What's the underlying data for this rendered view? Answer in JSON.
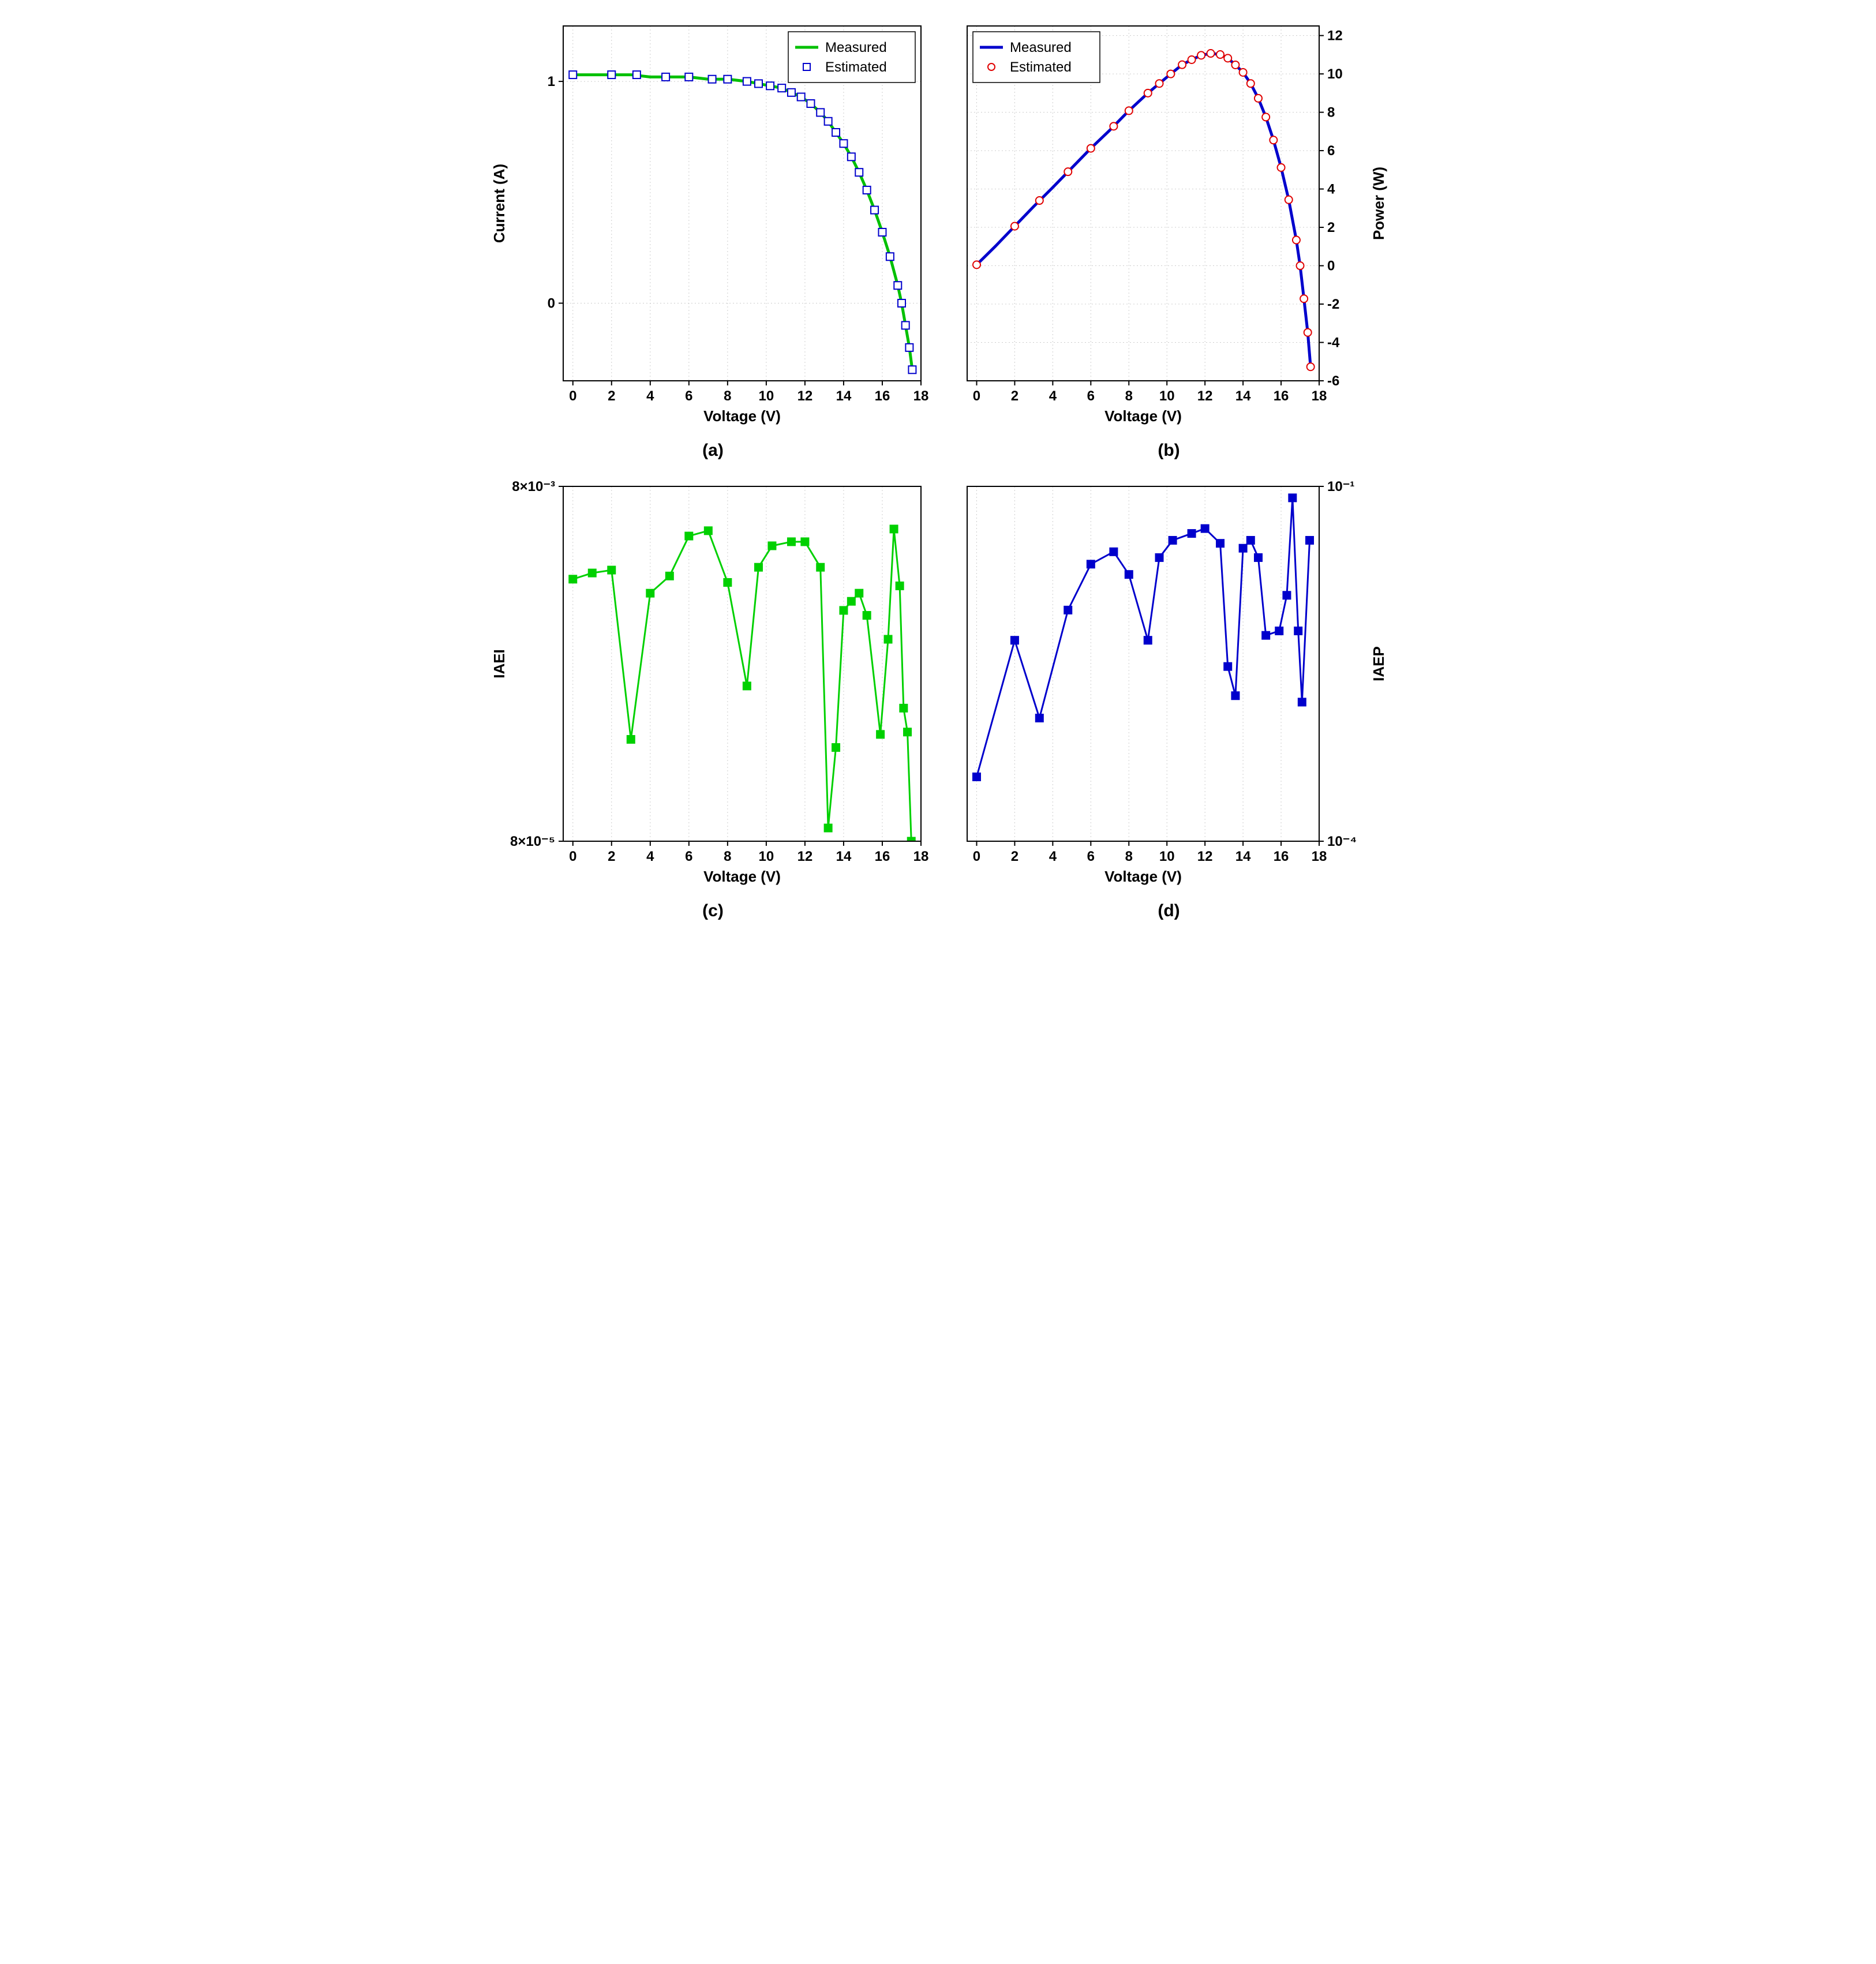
{
  "panels": {
    "a": {
      "type": "line+scatter",
      "xlabel": "Voltage (V)",
      "ylabel": "Current (A)",
      "ylabel_side": "left",
      "sub_label": "(a)",
      "xlim": [
        -0.5,
        18
      ],
      "ylim": [
        -0.35,
        1.25
      ],
      "xticks": [
        0,
        2,
        4,
        6,
        8,
        10,
        12,
        14,
        16,
        18
      ],
      "yticks": [
        0,
        1
      ],
      "grid_color": "#cccccc",
      "grid_dash": "2,4",
      "background_color": "#ffffff",
      "label_fontsize": 26,
      "tick_fontsize": 24,
      "legend": {
        "position": "top-right",
        "items": [
          {
            "label": "Measured",
            "type": "line",
            "color": "#00c000",
            "width": 5
          },
          {
            "label": "Estimated",
            "type": "square-open",
            "color": "#0000cc",
            "size": 12
          }
        ],
        "fontsize": 24,
        "border_color": "#000000",
        "bg_color": "#ffffff"
      },
      "series": [
        {
          "name": "measured",
          "type": "line",
          "color": "#00c000",
          "width": 5,
          "data": [
            [
              0.0,
              1.03
            ],
            [
              1.0,
              1.03
            ],
            [
              2.0,
              1.03
            ],
            [
              3.0,
              1.03
            ],
            [
              4.0,
              1.02
            ],
            [
              5.0,
              1.02
            ],
            [
              6.0,
              1.02
            ],
            [
              7.0,
              1.01
            ],
            [
              8.0,
              1.01
            ],
            [
              9.0,
              1.0
            ],
            [
              9.6,
              0.99
            ],
            [
              10.2,
              0.98
            ],
            [
              10.8,
              0.97
            ],
            [
              11.3,
              0.95
            ],
            [
              11.8,
              0.93
            ],
            [
              12.3,
              0.9
            ],
            [
              12.8,
              0.86
            ],
            [
              13.2,
              0.82
            ],
            [
              13.6,
              0.77
            ],
            [
              14.0,
              0.72
            ],
            [
              14.4,
              0.66
            ],
            [
              14.8,
              0.59
            ],
            [
              15.2,
              0.51
            ],
            [
              15.6,
              0.42
            ],
            [
              16.0,
              0.32
            ],
            [
              16.4,
              0.21
            ],
            [
              16.8,
              0.08
            ],
            [
              17.0,
              0.0
            ],
            [
              17.2,
              -0.1
            ],
            [
              17.4,
              -0.2
            ],
            [
              17.55,
              -0.3
            ]
          ]
        },
        {
          "name": "estimated",
          "type": "scatter",
          "marker": "square-open",
          "color": "#0000cc",
          "size": 13,
          "stroke_width": 2,
          "data": [
            [
              0.0,
              1.03
            ],
            [
              2.0,
              1.03
            ],
            [
              3.3,
              1.03
            ],
            [
              4.8,
              1.02
            ],
            [
              6.0,
              1.02
            ],
            [
              7.2,
              1.01
            ],
            [
              8.0,
              1.01
            ],
            [
              9.0,
              1.0
            ],
            [
              9.6,
              0.99
            ],
            [
              10.2,
              0.98
            ],
            [
              10.8,
              0.97
            ],
            [
              11.3,
              0.95
            ],
            [
              11.8,
              0.93
            ],
            [
              12.3,
              0.9
            ],
            [
              12.8,
              0.86
            ],
            [
              13.2,
              0.82
            ],
            [
              13.6,
              0.77
            ],
            [
              14.0,
              0.72
            ],
            [
              14.4,
              0.66
            ],
            [
              14.8,
              0.59
            ],
            [
              15.2,
              0.51
            ],
            [
              15.6,
              0.42
            ],
            [
              16.0,
              0.32
            ],
            [
              16.4,
              0.21
            ],
            [
              16.8,
              0.08
            ],
            [
              17.0,
              0.0
            ],
            [
              17.2,
              -0.1
            ],
            [
              17.4,
              -0.2
            ],
            [
              17.55,
              -0.3
            ]
          ]
        }
      ]
    },
    "b": {
      "type": "line+scatter",
      "xlabel": "Voltage (V)",
      "ylabel": "Power (W)",
      "ylabel_side": "right",
      "sub_label": "(b)",
      "xlim": [
        -0.5,
        18
      ],
      "ylim": [
        -6,
        12.5
      ],
      "xticks": [
        0,
        2,
        4,
        6,
        8,
        10,
        12,
        14,
        16,
        18
      ],
      "yticks": [
        -6,
        -4,
        -2,
        0,
        2,
        4,
        6,
        8,
        10,
        12
      ],
      "grid_color": "#cccccc",
      "grid_dash": "2,4",
      "background_color": "#ffffff",
      "label_fontsize": 26,
      "tick_fontsize": 24,
      "legend": {
        "position": "top-left",
        "items": [
          {
            "label": "Measured",
            "type": "line",
            "color": "#0000cc",
            "width": 5
          },
          {
            "label": "Estimated",
            "type": "circle-open",
            "color": "#e00000",
            "size": 12
          }
        ],
        "fontsize": 24,
        "border_color": "#000000",
        "bg_color": "#ffffff"
      },
      "series": [
        {
          "name": "measured",
          "type": "line",
          "color": "#0000cc",
          "width": 5,
          "data": [
            [
              0.0,
              0.05
            ],
            [
              1.0,
              1.03
            ],
            [
              2.0,
              2.06
            ],
            [
              3.0,
              3.09
            ],
            [
              4.0,
              4.08
            ],
            [
              5.0,
              5.1
            ],
            [
              6.0,
              6.12
            ],
            [
              7.0,
              7.07
            ],
            [
              8.0,
              8.08
            ],
            [
              9.0,
              9.0
            ],
            [
              9.6,
              9.5
            ],
            [
              10.2,
              10.0
            ],
            [
              10.8,
              10.48
            ],
            [
              11.3,
              10.74
            ],
            [
              11.8,
              10.97
            ],
            [
              12.3,
              11.07
            ],
            [
              12.8,
              11.01
            ],
            [
              13.2,
              10.82
            ],
            [
              13.6,
              10.47
            ],
            [
              14.0,
              10.08
            ],
            [
              14.4,
              9.5
            ],
            [
              14.8,
              8.73
            ],
            [
              15.2,
              7.75
            ],
            [
              15.6,
              6.55
            ],
            [
              16.0,
              5.12
            ],
            [
              16.4,
              3.44
            ],
            [
              16.8,
              1.34
            ],
            [
              17.0,
              0.0
            ],
            [
              17.2,
              -1.72
            ],
            [
              17.4,
              -3.48
            ],
            [
              17.55,
              -5.27
            ]
          ]
        },
        {
          "name": "estimated",
          "type": "scatter",
          "marker": "circle-open",
          "color": "#e00000",
          "size": 13,
          "stroke_width": 2,
          "data": [
            [
              0.0,
              0.05
            ],
            [
              2.0,
              2.06
            ],
            [
              3.3,
              3.4
            ],
            [
              4.8,
              4.9
            ],
            [
              6.0,
              6.12
            ],
            [
              7.2,
              7.27
            ],
            [
              8.0,
              8.08
            ],
            [
              9.0,
              9.0
            ],
            [
              9.6,
              9.5
            ],
            [
              10.2,
              10.0
            ],
            [
              10.8,
              10.48
            ],
            [
              11.3,
              10.74
            ],
            [
              11.8,
              10.97
            ],
            [
              12.3,
              11.07
            ],
            [
              12.8,
              11.01
            ],
            [
              13.2,
              10.82
            ],
            [
              13.6,
              10.47
            ],
            [
              14.0,
              10.08
            ],
            [
              14.4,
              9.5
            ],
            [
              14.8,
              8.73
            ],
            [
              15.2,
              7.75
            ],
            [
              15.6,
              6.55
            ],
            [
              16.0,
              5.12
            ],
            [
              16.4,
              3.44
            ],
            [
              16.8,
              1.34
            ],
            [
              17.0,
              0.0
            ],
            [
              17.2,
              -1.72
            ],
            [
              17.4,
              -3.48
            ],
            [
              17.55,
              -5.27
            ]
          ]
        }
      ]
    },
    "c": {
      "type": "line-marker-log",
      "xlabel": "Voltage (V)",
      "ylabel": "IAEI",
      "ylabel_side": "left",
      "sub_label": "(c)",
      "xlim": [
        -0.5,
        18
      ],
      "ylim_log": [
        8e-05,
        0.008
      ],
      "xticks": [
        0,
        2,
        4,
        6,
        8,
        10,
        12,
        14,
        16,
        18
      ],
      "ytick_labels": [
        "8×10⁻⁵",
        "8×10⁻³"
      ],
      "ytick_logvals": [
        8e-05,
        0.008
      ],
      "grid_color": "#cccccc",
      "grid_dash": "2,4",
      "background_color": "#ffffff",
      "label_fontsize": 26,
      "tick_fontsize": 24,
      "series": [
        {
          "name": "iaei",
          "type": "line-marker",
          "color": "#00d000",
          "width": 3,
          "marker": "square-filled",
          "size": 14,
          "data": [
            [
              0.0,
              0.0024
            ],
            [
              1.0,
              0.0026
            ],
            [
              2.0,
              0.0027
            ],
            [
              3.0,
              0.0003
            ],
            [
              4.0,
              0.002
            ],
            [
              5.0,
              0.0025
            ],
            [
              6.0,
              0.0042
            ],
            [
              7.0,
              0.0045
            ],
            [
              8.0,
              0.0023
            ],
            [
              9.0,
              0.0006
            ],
            [
              9.6,
              0.0028
            ],
            [
              10.3,
              0.0037
            ],
            [
              11.3,
              0.0039
            ],
            [
              12.0,
              0.0039
            ],
            [
              12.8,
              0.0028
            ],
            [
              13.2,
              9.5e-05
            ],
            [
              13.6,
              0.00027
            ],
            [
              14.0,
              0.0016
            ],
            [
              14.4,
              0.0018
            ],
            [
              14.8,
              0.002
            ],
            [
              15.2,
              0.0015
            ],
            [
              15.9,
              0.00032
            ],
            [
              16.3,
              0.0011
            ],
            [
              16.6,
              0.0046
            ],
            [
              16.9,
              0.0022
            ],
            [
              17.1,
              0.00045
            ],
            [
              17.3,
              0.00033
            ],
            [
              17.5,
              8e-05
            ]
          ]
        }
      ]
    },
    "d": {
      "type": "line-marker-log",
      "xlabel": "Voltage (V)",
      "ylabel": "IAEP",
      "ylabel_side": "right",
      "sub_label": "(d)",
      "xlim": [
        -0.5,
        18
      ],
      "ylim_log": [
        0.0001,
        0.1
      ],
      "xticks": [
        0,
        2,
        4,
        6,
        8,
        10,
        12,
        14,
        16,
        18
      ],
      "ytick_labels": [
        "10⁻⁴",
        "10⁻¹"
      ],
      "ytick_logvals": [
        0.0001,
        0.1
      ],
      "grid_color": "#cccccc",
      "grid_dash": "2,4",
      "background_color": "#ffffff",
      "label_fontsize": 26,
      "tick_fontsize": 24,
      "series": [
        {
          "name": "iaep",
          "type": "line-marker",
          "color": "#0000cc",
          "width": 3,
          "marker": "square-filled",
          "size": 14,
          "data": [
            [
              0.0,
              0.00035
            ],
            [
              2.0,
              0.005
            ],
            [
              3.3,
              0.0011
            ],
            [
              4.8,
              0.009
            ],
            [
              6.0,
              0.022
            ],
            [
              7.2,
              0.028
            ],
            [
              8.0,
              0.018
            ],
            [
              9.0,
              0.005
            ],
            [
              9.6,
              0.025
            ],
            [
              10.3,
              0.035
            ],
            [
              11.3,
              0.04
            ],
            [
              12.0,
              0.044
            ],
            [
              12.8,
              0.033
            ],
            [
              13.2,
              0.003
            ],
            [
              13.6,
              0.0017
            ],
            [
              14.0,
              0.03
            ],
            [
              14.4,
              0.035
            ],
            [
              14.8,
              0.025
            ],
            [
              15.2,
              0.0055
            ],
            [
              15.9,
              0.006
            ],
            [
              16.3,
              0.012
            ],
            [
              16.6,
              0.08
            ],
            [
              16.9,
              0.006
            ],
            [
              17.1,
              0.0015
            ],
            [
              17.5,
              0.035
            ]
          ]
        }
      ]
    }
  }
}
